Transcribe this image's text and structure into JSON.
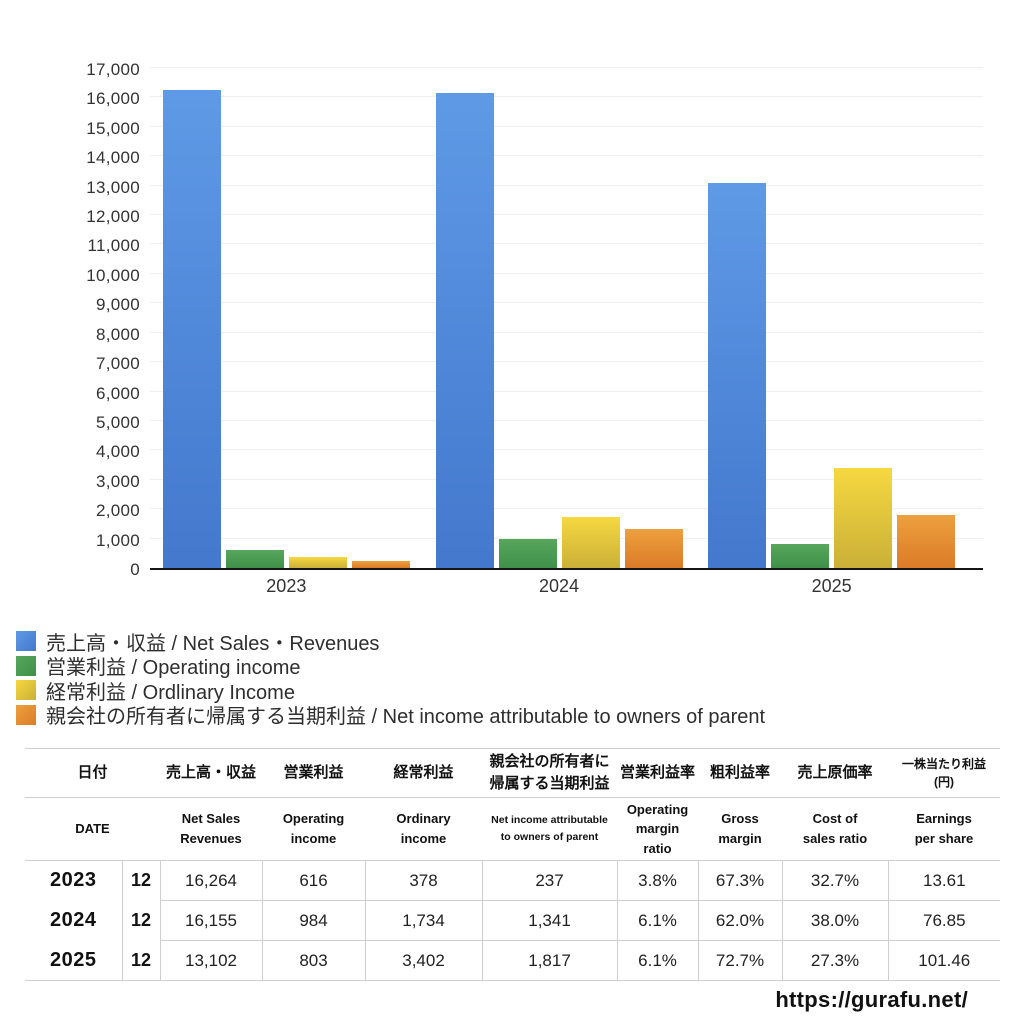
{
  "chart_data": {
    "type": "bar",
    "categories": [
      "2023",
      "2024",
      "2025"
    ],
    "series": [
      {
        "key": "net-sales",
        "name": "売上高・収益 / Net Sales・Revenues",
        "color_top": "#5e9ae6",
        "color_bottom": "#4478cd",
        "values": [
          16264,
          16155,
          13102
        ]
      },
      {
        "key": "operating-income",
        "name": "営業利益 / Operating income",
        "color_top": "#58a65c",
        "color_bottom": "#40904a",
        "values": [
          616,
          984,
          803
        ]
      },
      {
        "key": "ordinary-income",
        "name": "経常利益 / Ordlinary Income",
        "color_top": "#f6d840",
        "color_bottom": "#cab038",
        "values": [
          378,
          1734,
          3402
        ]
      },
      {
        "key": "net-income",
        "name": "親会社の所有者に帰属する当期利益 / Net income attributable to owners of parent",
        "color_top": "#eda03f",
        "color_bottom": "#db7b27",
        "values": [
          237,
          1341,
          1817
        ]
      }
    ],
    "title": "",
    "xlabel": "",
    "ylabel": "",
    "ylim": [
      0,
      17000
    ],
    "ytick_step": 1000,
    "grid": true,
    "legend_position": "bottom-left"
  },
  "table": {
    "columns": [
      {
        "jp": "日付",
        "en": "DATE",
        "span": 2
      },
      {
        "jp": "売上高・収益",
        "en": "Net Sales\nRevenues"
      },
      {
        "jp": "営業利益",
        "en": "Operating\nincome"
      },
      {
        "jp": "経常利益",
        "en": "Ordinary\nincome"
      },
      {
        "jp": "親会社の所有者に\n帰属する当期利益",
        "en": "Net income attributable\nto owners of parent",
        "en_small": true
      },
      {
        "jp": "営業利益率",
        "en": "Operating\nmargin\nratio"
      },
      {
        "jp": "粗利益率",
        "en": "Gross\nmargin"
      },
      {
        "jp": "売上原価率",
        "en": "Cost of\nsales ratio"
      },
      {
        "jp": "一株当たり利益\n(円)",
        "en": "Earnings\nper share",
        "jp_small": true
      }
    ],
    "rows": [
      {
        "year": "2023",
        "month": "12",
        "values": [
          "16,264",
          "616",
          "378",
          "237",
          "3.8%",
          "67.3%",
          "32.7%",
          "13.61"
        ]
      },
      {
        "year": "2024",
        "month": "12",
        "values": [
          "16,155",
          "984",
          "1,734",
          "1,341",
          "6.1%",
          "62.0%",
          "38.0%",
          "76.85"
        ]
      },
      {
        "year": "2025",
        "month": "12",
        "values": [
          "13,102",
          "803",
          "3,402",
          "1,817",
          "6.1%",
          "72.7%",
          "27.3%",
          "101.46"
        ]
      }
    ]
  },
  "footer": {
    "url": "https://gurafu.net/"
  },
  "colors": {
    "axis_line": "#161616",
    "gridline": "#efefef",
    "tick_label": "#333333",
    "table_border": "#cfcfcf"
  }
}
